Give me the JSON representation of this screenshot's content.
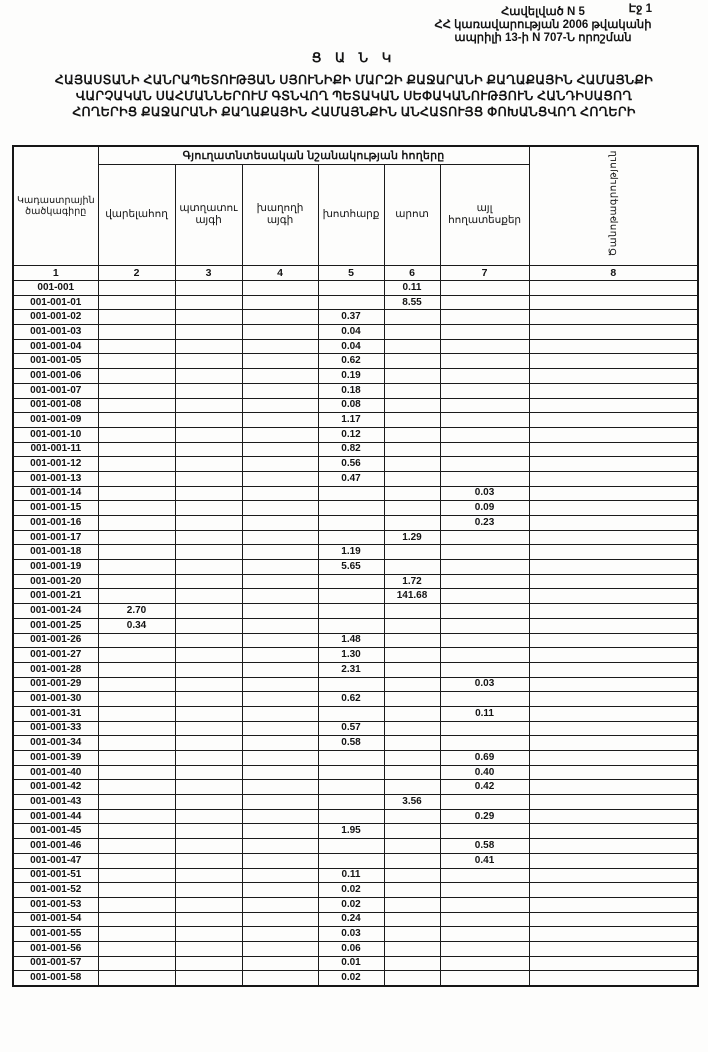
{
  "page": {
    "page_label": "Էջ 1",
    "annex_lines": [
      "Հավելված N 5",
      "ՀՀ կառավարության 2006 թվականի",
      "ապրիլի 13-ի N 707-Ն որոշման"
    ],
    "title": "Ց Ա Ն Կ",
    "subtitle_lines": [
      "ՀԱՅԱՍՏԱՆԻ ՀԱՆՐԱՊԵՏՈՒԹՅԱՆ ՍՅՈՒՆԻՔԻ ՄԱՐԶԻ ՔԱՋԱՐԱՆԻ ՔԱՂԱՔԱՅԻՆ ՀԱՄԱՅՆՔԻ",
      "ՎԱՐՉԱԿԱՆ ՍԱՀՄԱՆՆԵՐՈՒՄ ԳՏՆՎՈՂ ՊԵՏԱԿԱՆ ՍԵՓԱԿԱՆՈՒԹՅՈՒՆ ՀԱՆԴԻՍԱՑՈՂ",
      "ՀՈՂԵՐԻՑ ՔԱՋԱՐԱՆԻ ՔԱՂԱՔԱՅԻՆ ՀԱՄԱՅՆՔԻՆ ԱՆՀԱՏՈՒՅՑ ՓՈԽԱՆՑՎՈՂ ՀՈՂԵՐԻ"
    ]
  },
  "table": {
    "cadastral_header": "Կադաստրային ծածկագիրը",
    "group_header": "Գյուղատնտեսական նշանակության հողերը",
    "sub_headers": [
      "վարելահող",
      "պտղատու այգի",
      "խաղողի այգի",
      "խոտհարք",
      "արոտ",
      "այլ հողատեսքեր"
    ],
    "note_header": "Ծանոթագրություն",
    "column_numbers": [
      "1",
      "2",
      "3",
      "4",
      "5",
      "6",
      "7",
      "8"
    ],
    "rows": [
      {
        "code": "001-001",
        "values": [
          "",
          "",
          "",
          "",
          "0.11",
          "",
          ""
        ]
      },
      {
        "code": "001-001-01",
        "values": [
          "",
          "",
          "",
          "",
          "8.55",
          "",
          ""
        ]
      },
      {
        "code": "001-001-02",
        "values": [
          "",
          "",
          "",
          "0.37",
          "",
          "",
          ""
        ]
      },
      {
        "code": "001-001-03",
        "values": [
          "",
          "",
          "",
          "0.04",
          "",
          "",
          ""
        ]
      },
      {
        "code": "001-001-04",
        "values": [
          "",
          "",
          "",
          "0.04",
          "",
          "",
          ""
        ]
      },
      {
        "code": "001-001-05",
        "values": [
          "",
          "",
          "",
          "0.62",
          "",
          "",
          ""
        ]
      },
      {
        "code": "001-001-06",
        "values": [
          "",
          "",
          "",
          "0.19",
          "",
          "",
          ""
        ]
      },
      {
        "code": "001-001-07",
        "values": [
          "",
          "",
          "",
          "0.18",
          "",
          "",
          ""
        ]
      },
      {
        "code": "001-001-08",
        "values": [
          "",
          "",
          "",
          "0.08",
          "",
          "",
          ""
        ]
      },
      {
        "code": "001-001-09",
        "values": [
          "",
          "",
          "",
          "1.17",
          "",
          "",
          ""
        ]
      },
      {
        "code": "001-001-10",
        "values": [
          "",
          "",
          "",
          "0.12",
          "",
          "",
          ""
        ]
      },
      {
        "code": "001-001-11",
        "values": [
          "",
          "",
          "",
          "0.82",
          "",
          "",
          ""
        ]
      },
      {
        "code": "001-001-12",
        "values": [
          "",
          "",
          "",
          "0.56",
          "",
          "",
          ""
        ]
      },
      {
        "code": "001-001-13",
        "values": [
          "",
          "",
          "",
          "0.47",
          "",
          "",
          ""
        ]
      },
      {
        "code": "001-001-14",
        "values": [
          "",
          "",
          "",
          "",
          "",
          "0.03",
          ""
        ]
      },
      {
        "code": "001-001-15",
        "values": [
          "",
          "",
          "",
          "",
          "",
          "0.09",
          ""
        ]
      },
      {
        "code": "001-001-16",
        "values": [
          "",
          "",
          "",
          "",
          "",
          "0.23",
          ""
        ]
      },
      {
        "code": "001-001-17",
        "values": [
          "",
          "",
          "",
          "",
          "1.29",
          "",
          ""
        ]
      },
      {
        "code": "001-001-18",
        "values": [
          "",
          "",
          "",
          "1.19",
          "",
          "",
          ""
        ]
      },
      {
        "code": "001-001-19",
        "values": [
          "",
          "",
          "",
          "5.65",
          "",
          "",
          ""
        ]
      },
      {
        "code": "001-001-20",
        "values": [
          "",
          "",
          "",
          "",
          "1.72",
          "",
          ""
        ]
      },
      {
        "code": "001-001-21",
        "values": [
          "",
          "",
          "",
          "",
          "141.68",
          "",
          ""
        ]
      },
      {
        "code": "001-001-24",
        "values": [
          "2.70",
          "",
          "",
          "",
          "",
          "",
          ""
        ]
      },
      {
        "code": "001-001-25",
        "values": [
          "0.34",
          "",
          "",
          "",
          "",
          "",
          ""
        ]
      },
      {
        "code": "001-001-26",
        "values": [
          "",
          "",
          "",
          "1.48",
          "",
          "",
          ""
        ]
      },
      {
        "code": "001-001-27",
        "values": [
          "",
          "",
          "",
          "1.30",
          "",
          "",
          ""
        ]
      },
      {
        "code": "001-001-28",
        "values": [
          "",
          "",
          "",
          "2.31",
          "",
          "",
          ""
        ]
      },
      {
        "code": "001-001-29",
        "values": [
          "",
          "",
          "",
          "",
          "",
          "0.03",
          ""
        ]
      },
      {
        "code": "001-001-30",
        "values": [
          "",
          "",
          "",
          "0.62",
          "",
          "",
          ""
        ]
      },
      {
        "code": "001-001-31",
        "values": [
          "",
          "",
          "",
          "",
          "",
          "0.11",
          ""
        ]
      },
      {
        "code": "001-001-33",
        "values": [
          "",
          "",
          "",
          "0.57",
          "",
          "",
          ""
        ]
      },
      {
        "code": "001-001-34",
        "values": [
          "",
          "",
          "",
          "0.58",
          "",
          "",
          ""
        ]
      },
      {
        "code": "001-001-39",
        "values": [
          "",
          "",
          "",
          "",
          "",
          "0.69",
          ""
        ]
      },
      {
        "code": "001-001-40",
        "values": [
          "",
          "",
          "",
          "",
          "",
          "0.40",
          ""
        ]
      },
      {
        "code": "001-001-42",
        "values": [
          "",
          "",
          "",
          "",
          "",
          "0.42",
          ""
        ]
      },
      {
        "code": "001-001-43",
        "values": [
          "",
          "",
          "",
          "",
          "3.56",
          "",
          ""
        ]
      },
      {
        "code": "001-001-44",
        "values": [
          "",
          "",
          "",
          "",
          "",
          "0.29",
          ""
        ]
      },
      {
        "code": "001-001-45",
        "values": [
          "",
          "",
          "",
          "1.95",
          "",
          "",
          ""
        ]
      },
      {
        "code": "001-001-46",
        "values": [
          "",
          "",
          "",
          "",
          "",
          "0.58",
          ""
        ]
      },
      {
        "code": "001-001-47",
        "values": [
          "",
          "",
          "",
          "",
          "",
          "0.41",
          ""
        ]
      },
      {
        "code": "001-001-51",
        "values": [
          "",
          "",
          "",
          "0.11",
          "",
          "",
          ""
        ]
      },
      {
        "code": "001-001-52",
        "values": [
          "",
          "",
          "",
          "0.02",
          "",
          "",
          ""
        ]
      },
      {
        "code": "001-001-53",
        "values": [
          "",
          "",
          "",
          "0.02",
          "",
          "",
          ""
        ]
      },
      {
        "code": "001-001-54",
        "values": [
          "",
          "",
          "",
          "0.24",
          "",
          "",
          ""
        ]
      },
      {
        "code": "001-001-55",
        "values": [
          "",
          "",
          "",
          "0.03",
          "",
          "",
          ""
        ]
      },
      {
        "code": "001-001-56",
        "values": [
          "",
          "",
          "",
          "0.06",
          "",
          "",
          ""
        ]
      },
      {
        "code": "001-001-57",
        "values": [
          "",
          "",
          "",
          "0.01",
          "",
          "",
          ""
        ]
      },
      {
        "code": "001-001-58",
        "values": [
          "",
          "",
          "",
          "0.02",
          "",
          "",
          ""
        ]
      }
    ]
  }
}
